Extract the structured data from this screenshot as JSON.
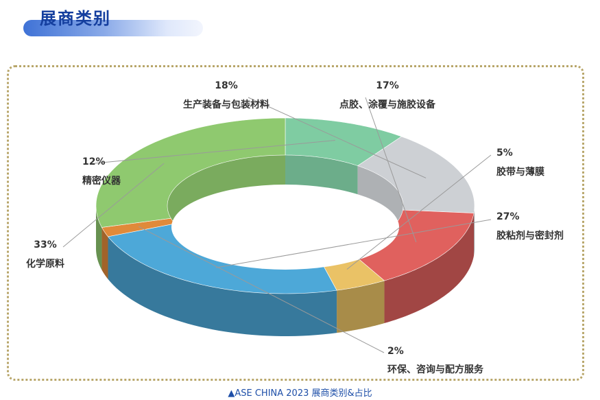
{
  "header": {
    "title": "展商类别"
  },
  "caption": "▲ASE CHINA 2023 展商类别&占比",
  "chart_data": {
    "type": "pie",
    "style": "3d-donut",
    "categories": [
      "精密仪器",
      "生产装备与包装材料",
      "点胶、涂覆与施胶设备",
      "胶带与薄膜",
      "胶粘剂与密封剂",
      "环保、咨询与配方服务",
      "化学原料"
    ],
    "values": [
      12,
      18,
      17,
      5,
      27,
      2,
      33
    ],
    "data_labels": [
      "12%",
      "18%",
      "17%",
      "5%",
      "27%",
      "2%",
      "33%"
    ],
    "colors": [
      "#7fcca2",
      "#cdd0d4",
      "#e0615e",
      "#eac266",
      "#4da8d8",
      "#e08a3a",
      "#8fc96f"
    ]
  }
}
